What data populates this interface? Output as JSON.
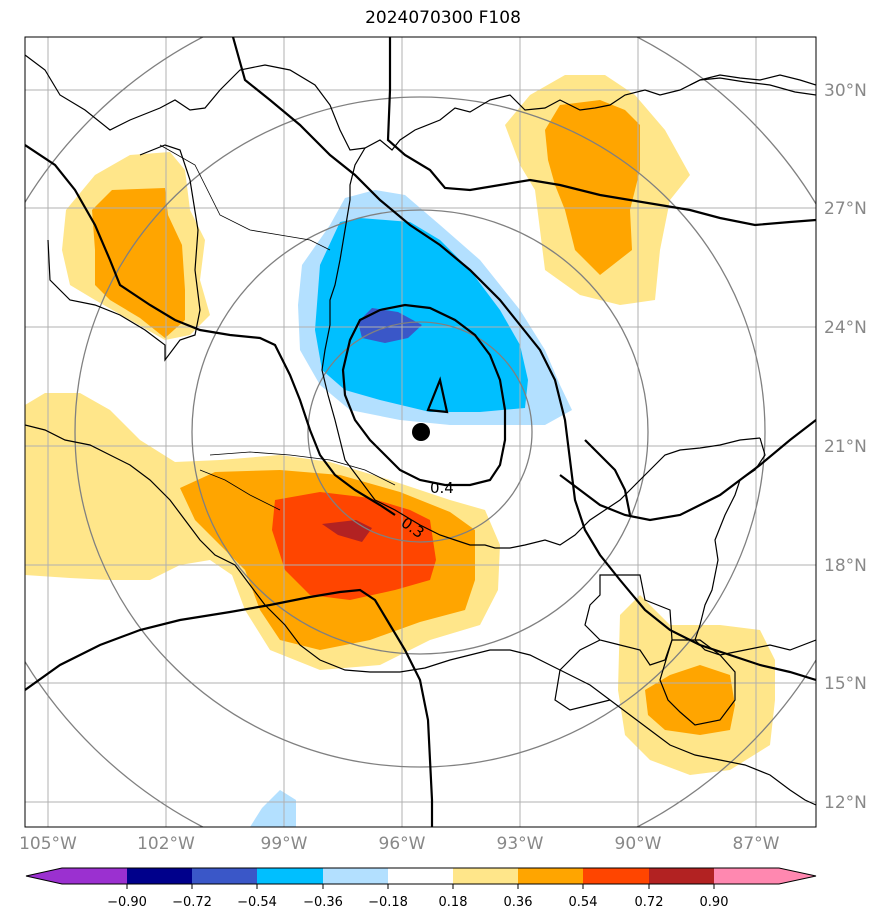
{
  "title": "2024070300 F108",
  "colors": {
    "neg_extreme": "#9b30d0",
    "neg90": "#00008b",
    "neg72": "#3a57c8",
    "neg54": "#00bfff",
    "neg36": "#b3e0ff",
    "neutral": "#ffffff",
    "pos18": "#ffe68a",
    "pos36": "#ffa500",
    "pos54": "#ff4500",
    "pos72": "#b22222",
    "pos_extreme": "#ff88b0",
    "grid": "#b0b0b0",
    "range_ring": "#808080",
    "coast": "#000000"
  },
  "axes": {
    "lon_labels": [
      "105°W",
      "102°W",
      "99°W",
      "96°W",
      "93°W",
      "90°W",
      "87°W"
    ],
    "lat_labels": [
      "30°N",
      "27°N",
      "24°N",
      "21°N",
      "18°N",
      "15°N",
      "12°N"
    ]
  },
  "colorbar": {
    "ticks": [
      "−0.90",
      "−0.72",
      "−0.54",
      "−0.36",
      "−0.18",
      "0.18",
      "0.36",
      "0.54",
      "0.72",
      "0.90"
    ]
  },
  "contours": {
    "label_a": "0.4",
    "label_b": "0.3"
  },
  "center_marker": "storm-center-dot"
}
